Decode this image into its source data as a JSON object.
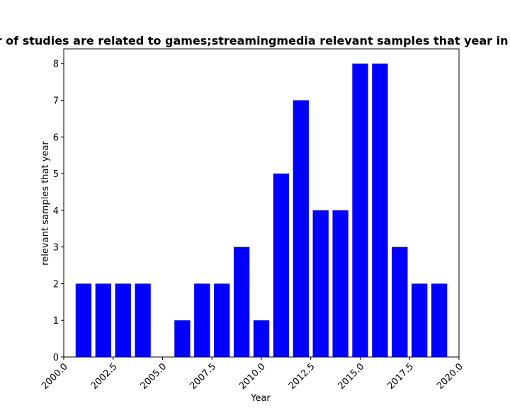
{
  "chart_data": {
    "type": "bar",
    "title": "Number of studies are related to games;streamingmedia relevant samples that year in privacy",
    "xlabel": "Year",
    "ylabel": "relevant samples that year",
    "x": [
      2001,
      2002,
      2003,
      2004,
      2005,
      2006,
      2007,
      2008,
      2009,
      2010,
      2011,
      2012,
      2013,
      2014,
      2015,
      2016,
      2017,
      2018,
      2019
    ],
    "values": [
      2,
      2,
      2,
      2,
      0,
      1,
      2,
      2,
      3,
      1,
      5,
      7,
      4,
      4,
      8,
      8,
      3,
      2,
      2
    ],
    "xlim": [
      2000.0,
      2020.0
    ],
    "ylim": [
      0,
      8.4
    ],
    "x_ticks": [
      "2000.0",
      "2002.5",
      "2005.0",
      "2007.5",
      "2010.0",
      "2012.5",
      "2015.0",
      "2017.5",
      "2020.0"
    ],
    "y_ticks": [
      "0",
      "1",
      "2",
      "3",
      "4",
      "5",
      "6",
      "7",
      "8"
    ],
    "bar_color": "#0000ff",
    "grid": false
  }
}
